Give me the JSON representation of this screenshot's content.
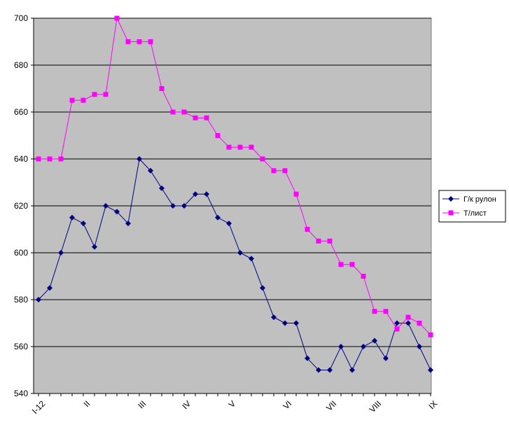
{
  "chart_data": {
    "type": "line",
    "x_tick_labels": [
      "I-12",
      "II",
      "III",
      "IV",
      "V",
      "VI",
      "VII",
      "VIII",
      "IX"
    ],
    "x_tick_positions": [
      0,
      4,
      9,
      13,
      17,
      22,
      26,
      30,
      35
    ],
    "ylim": [
      540,
      700
    ],
    "y_ticks": [
      540,
      560,
      580,
      600,
      620,
      640,
      660,
      680,
      700
    ],
    "grid": true,
    "legend_position": "right",
    "series": [
      {
        "name": "Г/к рулон",
        "color": "#000080",
        "marker": "diamond",
        "values": [
          580,
          585,
          600,
          615,
          612.5,
          602.5,
          620,
          617.5,
          612.5,
          640,
          635,
          627.5,
          620,
          620,
          625,
          625,
          615,
          612.5,
          600,
          597.5,
          585,
          572.5,
          570,
          570,
          555,
          550,
          550,
          560,
          550,
          560,
          562.5,
          555,
          570,
          570,
          560,
          550
        ]
      },
      {
        "name": "Т/лист",
        "color": "#ff00ff",
        "marker": "square",
        "values": [
          640,
          640,
          640,
          665,
          665,
          667.5,
          667.5,
          700,
          690,
          690,
          690,
          670,
          660,
          660,
          657.5,
          657.5,
          650,
          645,
          645,
          645,
          640,
          635,
          635,
          625,
          610,
          605,
          605,
          595,
          595,
          590,
          575,
          575,
          567.5,
          572.5,
          570,
          565
        ]
      }
    ]
  }
}
